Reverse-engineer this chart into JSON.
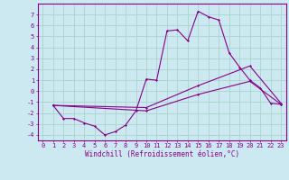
{
  "xlabel": "Windchill (Refroidissement éolien,°C)",
  "bg_color": "#cce8f0",
  "grid_color": "#aad4cc",
  "line_color": "#880088",
  "spine_color": "#880088",
  "xlim": [
    -0.5,
    23.5
  ],
  "ylim": [
    -4.5,
    8.0
  ],
  "yticks": [
    -4,
    -3,
    -2,
    -1,
    0,
    1,
    2,
    3,
    4,
    5,
    6,
    7
  ],
  "xticks": [
    0,
    1,
    2,
    3,
    4,
    5,
    6,
    7,
    8,
    9,
    10,
    11,
    12,
    13,
    14,
    15,
    16,
    17,
    18,
    19,
    20,
    21,
    22,
    23
  ],
  "line1_x": [
    1,
    2,
    3,
    4,
    5,
    6,
    7,
    8,
    9,
    10,
    11,
    12,
    13,
    14,
    15,
    16,
    17,
    18,
    19,
    20,
    21,
    22,
    23
  ],
  "line1_y": [
    -1.3,
    -2.5,
    -2.5,
    -2.9,
    -3.2,
    -4.0,
    -3.7,
    -3.1,
    -1.8,
    1.1,
    1.0,
    5.5,
    5.6,
    4.6,
    7.3,
    6.8,
    6.5,
    3.5,
    2.2,
    1.0,
    0.3,
    -1.1,
    -1.2
  ],
  "line2_x": [
    1,
    10,
    15,
    20,
    23
  ],
  "line2_y": [
    -1.3,
    -1.5,
    0.5,
    2.3,
    -1.1
  ],
  "line3_x": [
    1,
    10,
    15,
    20,
    23
  ],
  "line3_y": [
    -1.3,
    -1.8,
    -0.3,
    0.9,
    -1.2
  ],
  "tick_fontsize": 5.0,
  "xlabel_fontsize": 5.5,
  "marker": "D",
  "markersize": 1.5,
  "linewidth": 0.8
}
